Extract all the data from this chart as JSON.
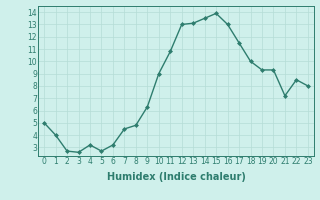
{
  "title": "",
  "xlabel": "Humidex (Indice chaleur)",
  "ylabel": "",
  "x": [
    0,
    1,
    2,
    3,
    4,
    5,
    6,
    7,
    8,
    9,
    10,
    11,
    12,
    13,
    14,
    15,
    16,
    17,
    18,
    19,
    20,
    21,
    22,
    23
  ],
  "y": [
    5.0,
    4.0,
    2.7,
    2.6,
    3.2,
    2.7,
    3.2,
    4.5,
    4.8,
    6.3,
    9.0,
    10.8,
    13.0,
    13.1,
    13.5,
    13.9,
    13.0,
    11.5,
    10.0,
    9.3,
    9.3,
    7.2,
    8.5,
    8.0
  ],
  "line_color": "#2e7d6e",
  "marker": "D",
  "marker_size": 2.0,
  "line_width": 1.0,
  "bg_color": "#cff0eb",
  "grid_color": "#b5ddd6",
  "ylim": [
    2.3,
    14.5
  ],
  "xlim": [
    -0.5,
    23.5
  ],
  "yticks": [
    3,
    4,
    5,
    6,
    7,
    8,
    9,
    10,
    11,
    12,
    13,
    14
  ],
  "xticks": [
    0,
    1,
    2,
    3,
    4,
    5,
    6,
    7,
    8,
    9,
    10,
    11,
    12,
    13,
    14,
    15,
    16,
    17,
    18,
    19,
    20,
    21,
    22,
    23
  ],
  "tick_label_size": 5.5,
  "xlabel_size": 7.0,
  "xlabel_fontweight": "bold"
}
